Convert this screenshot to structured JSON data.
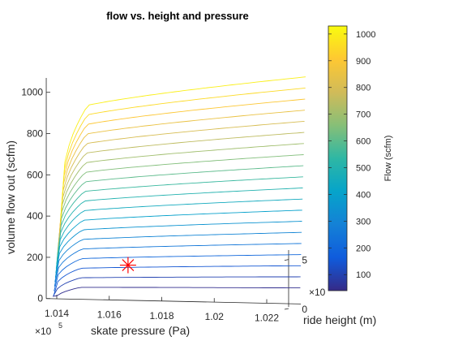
{
  "chart_data": {
    "type": "line",
    "subtype": "3d-contour",
    "title": "flow vs. height and pressure",
    "xlabel": "skate pressure (Pa)",
    "ylabel": "ride height (m)",
    "zlabel": "volume flow out (scfm)",
    "x_exponent_label": "×10",
    "x_exponent_power": "5",
    "y_exponent_label": "×10",
    "xlim": [
      1.0136,
      1.0233
    ],
    "ylim": [
      0,
      6
    ],
    "zlim": [
      0,
      1070
    ],
    "x_ticks": [
      "1.014",
      "1.016",
      "1.018",
      "1.02",
      "1.022"
    ],
    "x_tick_values": [
      1.014,
      1.016,
      1.018,
      1.02,
      1.022
    ],
    "y_ticks": [
      "0",
      "5"
    ],
    "y_tick_values": [
      0,
      5
    ],
    "z_ticks": [
      "0",
      "200",
      "400",
      "600",
      "800",
      "1000"
    ],
    "z_tick_values": [
      0,
      200,
      400,
      600,
      800,
      1000
    ],
    "contour_levels": [
      50,
      100,
      150,
      200,
      250,
      300,
      350,
      400,
      450,
      500,
      550,
      600,
      650,
      700,
      750,
      800,
      850,
      900,
      950,
      1000
    ],
    "pressure_range": [
      1.0137,
      1.0232
    ],
    "marker": {
      "symbol": "asterisk",
      "color": "#ff0000",
      "x": 1.0167,
      "y": 0.2,
      "z": 165
    },
    "grid": false,
    "colorbar": {
      "label": "Flow (scfm)",
      "range": [
        40,
        1030
      ],
      "ticks": [
        "100",
        "200",
        "300",
        "400",
        "500",
        "600",
        "700",
        "800",
        "900",
        "1000"
      ],
      "tick_values": [
        100,
        200,
        300,
        400,
        500,
        600,
        700,
        800,
        900,
        1000
      ],
      "colormap": "parula",
      "colors": [
        "#352a87",
        "#0f5cdd",
        "#1481d6",
        "#06a4ca",
        "#2eb7a4",
        "#87bf77",
        "#d1bb59",
        "#fec832",
        "#f9fb0e"
      ]
    }
  }
}
